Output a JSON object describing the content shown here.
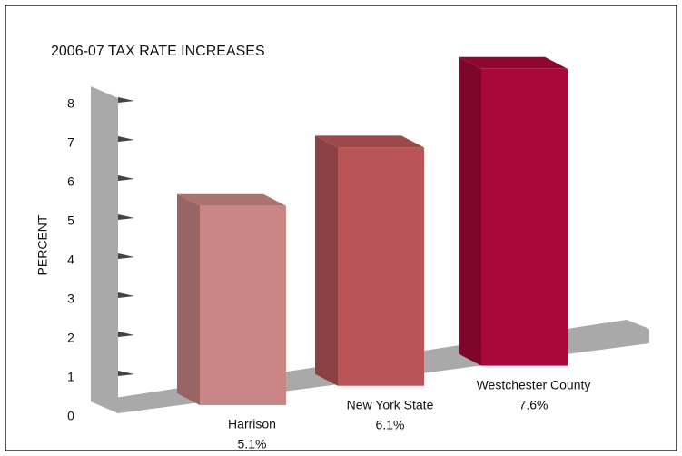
{
  "chart_data": {
    "type": "bar3d",
    "title": "2006-07 TAX RATE INCREASES",
    "y_label": "PERCENT",
    "categories": [
      "Harrison",
      "New York State",
      "Westchester County"
    ],
    "values": [
      5.1,
      6.1,
      7.6
    ],
    "value_labels": [
      "5.1%",
      "6.1%",
      "7.6%"
    ],
    "colors": [
      "#c98684",
      "#b95558",
      "#a8083a"
    ],
    "ylim": [
      0,
      8
    ],
    "yticks": [
      0,
      1,
      2,
      3,
      4,
      5,
      6,
      7,
      8
    ]
  }
}
